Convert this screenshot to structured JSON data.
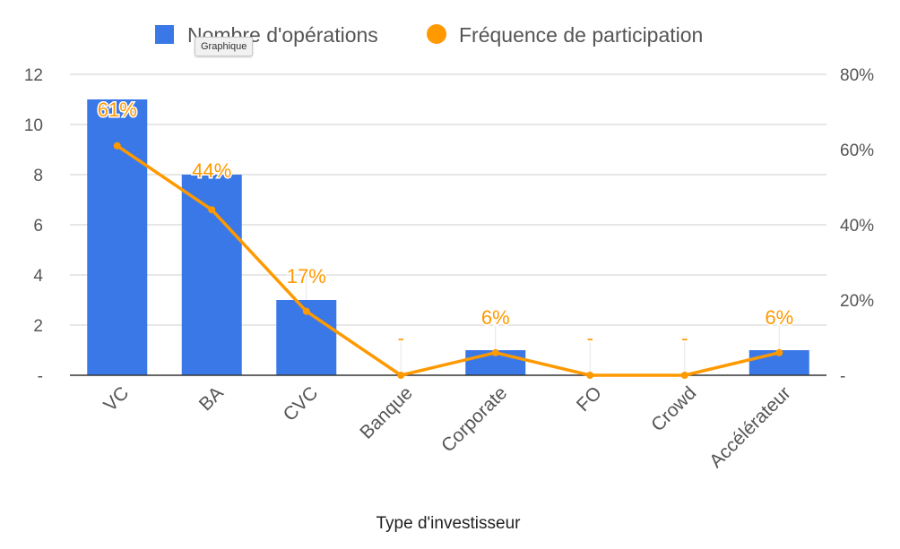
{
  "tooltip": "Graphique",
  "chart_data": {
    "type": "bar",
    "categories": [
      "VC",
      "BA",
      "CVC",
      "Banque",
      "Corporate",
      "FO",
      "Crowd",
      "Accélérateur"
    ],
    "xlabel": "Type d'investisseur",
    "grid": true,
    "legend_position": "top",
    "series": [
      {
        "name": "Nombre d'opérations",
        "type": "bar",
        "axis": "left",
        "color": "#3b78e7",
        "values": [
          11,
          8,
          3,
          0,
          1,
          0,
          0,
          1
        ]
      },
      {
        "name": "Fréquence de participation",
        "type": "line",
        "axis": "right",
        "color": "#ff9900",
        "values": [
          61,
          44,
          17,
          0,
          6,
          0,
          0,
          6
        ],
        "data_labels": [
          "61%",
          "44%",
          "17%",
          "-",
          "6%",
          "-",
          "-",
          "6%"
        ]
      }
    ],
    "left_axis": {
      "ylim": [
        0,
        12
      ],
      "ticks": [
        "-",
        "2",
        "4",
        "6",
        "8",
        "10",
        "12"
      ]
    },
    "right_axis": {
      "ylim": [
        0,
        80
      ],
      "ticks": [
        "-",
        "20%",
        "40%",
        "60%",
        "80%"
      ]
    }
  }
}
